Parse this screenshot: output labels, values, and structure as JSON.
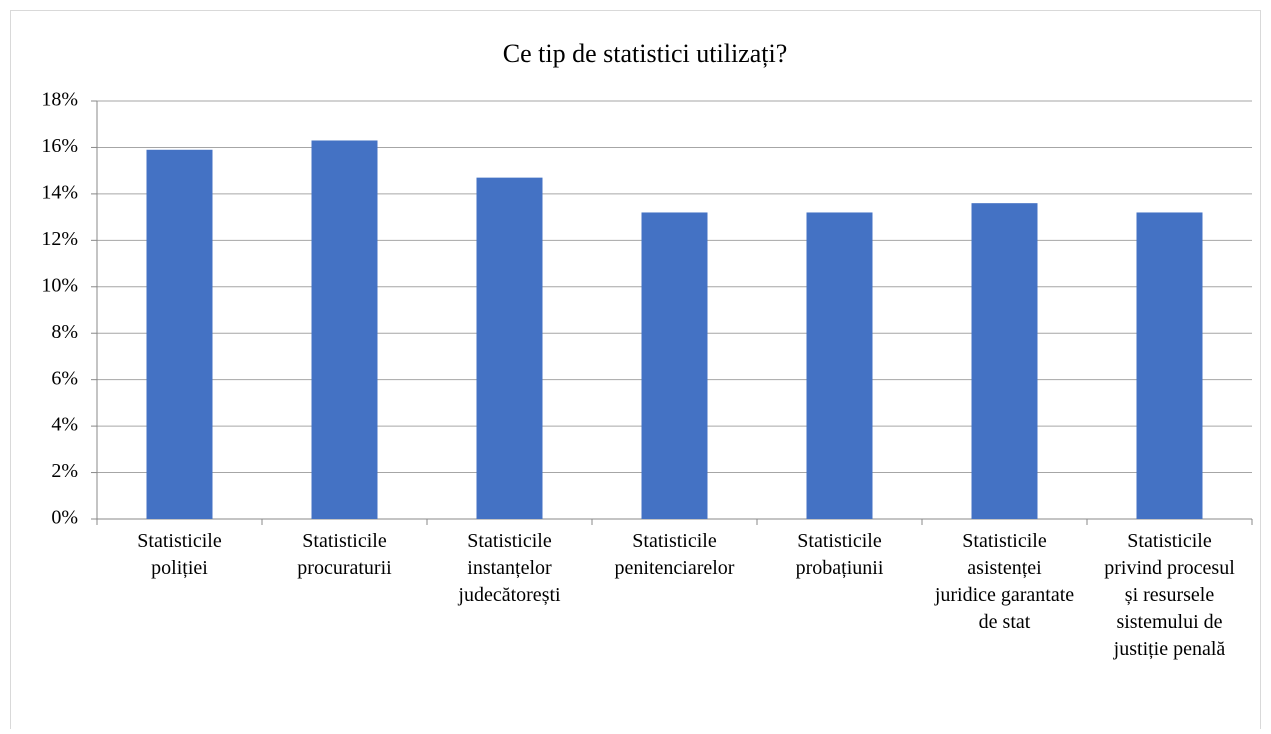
{
  "chart_data": {
    "type": "bar",
    "title": "Ce tip de statistici utilizați?",
    "categories": [
      "Statisticile poliției",
      "Statisticile procuraturii",
      "Statisticile instanțelor judecătorești",
      "Statisticile penitenciarelor",
      "Statisticile probațiunii",
      "Statisticile asistenței juridice garantate de stat",
      "Statisticile privind procesul și resursele sistemului de justiție penală"
    ],
    "values": [
      15.9,
      16.3,
      14.7,
      13.2,
      13.2,
      13.6,
      13.2
    ],
    "color": "#4472c4",
    "ylim": [
      0,
      18
    ],
    "yticks": [
      {
        "value": 0,
        "label": "0%"
      },
      {
        "value": 2,
        "label": "2%"
      },
      {
        "value": 4,
        "label": "4%"
      },
      {
        "value": 6,
        "label": "6%"
      },
      {
        "value": 8,
        "label": "8%"
      },
      {
        "value": 10,
        "label": "10%"
      },
      {
        "value": 12,
        "label": "12%"
      },
      {
        "value": 14,
        "label": "14%"
      },
      {
        "value": 16,
        "label": "16%"
      },
      {
        "value": 18,
        "label": "18%"
      }
    ],
    "grid": true
  }
}
